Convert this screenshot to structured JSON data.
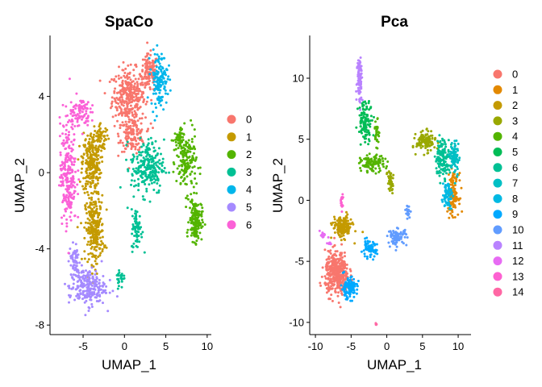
{
  "chart_data": [
    {
      "type": "scatter",
      "title": "SpaCo",
      "xlabel": "UMAP_1",
      "ylabel": "UMAP_2",
      "xlim": [
        -9,
        10.5
      ],
      "ylim": [
        -8.5,
        7.2
      ],
      "xticks": [
        -5,
        0,
        5,
        10
      ],
      "yticks": [
        -8,
        -4,
        0,
        4
      ],
      "grid": false,
      "legend_position": "right",
      "series": [
        {
          "name": "0",
          "color": "#F8766D",
          "blobs": [
            [
              0.5,
              4.0,
              1.8,
              1.3,
              320
            ],
            [
              3.0,
              5.2,
              1.0,
              0.9,
              120
            ],
            [
              1.0,
              2.0,
              1.4,
              0.8,
              140
            ]
          ]
        },
        {
          "name": "1",
          "color": "#C49A00",
          "blobs": [
            [
              -4.0,
              0.5,
              1.0,
              1.5,
              260
            ],
            [
              -3.6,
              -3.0,
              1.0,
              1.6,
              260
            ],
            [
              -2.8,
              1.8,
              0.8,
              0.6,
              60
            ]
          ]
        },
        {
          "name": "2",
          "color": "#53B400",
          "blobs": [
            [
              7.5,
              0.5,
              1.1,
              1.4,
              150
            ],
            [
              8.6,
              -2.5,
              0.7,
              1.0,
              170
            ],
            [
              6.5,
              1.7,
              0.6,
              0.5,
              50
            ]
          ]
        },
        {
          "name": "3",
          "color": "#00C094",
          "blobs": [
            [
              2.8,
              0.3,
              1.8,
              1.3,
              230
            ],
            [
              1.5,
              -3.0,
              0.6,
              1.0,
              70
            ],
            [
              -0.5,
              -5.5,
              0.5,
              0.5,
              25
            ]
          ]
        },
        {
          "name": "4",
          "color": "#00B6EB",
          "blobs": [
            [
              4.2,
              4.9,
              0.9,
              1.3,
              140
            ]
          ]
        },
        {
          "name": "5",
          "color": "#A58AFF",
          "blobs": [
            [
              -4.5,
              -6.0,
              2.0,
              0.9,
              230
            ],
            [
              -6.0,
              -4.6,
              0.6,
              0.8,
              50
            ]
          ]
        },
        {
          "name": "6",
          "color": "#FB61D7",
          "blobs": [
            [
              -6.8,
              0.0,
              0.9,
              2.5,
              240
            ],
            [
              -5.5,
              3.2,
              1.2,
              0.7,
              90
            ]
          ]
        }
      ]
    },
    {
      "type": "scatter",
      "title": "Pca",
      "xlabel": "UMAP_1",
      "ylabel": "UMAP_2",
      "xlim": [
        -10.8,
        11.8
      ],
      "ylim": [
        -11.0,
        13.5
      ],
      "xticks": [
        -10,
        -5,
        0,
        5,
        10
      ],
      "yticks": [
        -10,
        -5,
        0,
        5,
        10
      ],
      "grid": false,
      "legend_position": "right",
      "series": [
        {
          "name": "0",
          "color": "#F8766D",
          "blobs": [
            [
              -7.0,
              -6.0,
              1.5,
              1.6,
              400
            ]
          ]
        },
        {
          "name": "1",
          "color": "#E38900",
          "blobs": [
            [
              9.3,
              0.5,
              0.7,
              1.5,
              130
            ]
          ]
        },
        {
          "name": "2",
          "color": "#C49A00",
          "blobs": [
            [
              -6.2,
              -2.2,
              1.2,
              0.8,
              170
            ]
          ]
        },
        {
          "name": "3",
          "color": "#99A800",
          "blobs": [
            [
              5.5,
              4.8,
              1.2,
              0.7,
              130
            ],
            [
              0.5,
              1.5,
              0.4,
              1.0,
              40
            ]
          ]
        },
        {
          "name": "4",
          "color": "#53B400",
          "blobs": [
            [
              -2.0,
              3.0,
              1.5,
              0.6,
              110
            ],
            [
              -1.4,
              5.5,
              0.3,
              1.0,
              30
            ]
          ]
        },
        {
          "name": "5",
          "color": "#00BC56",
          "blobs": [
            [
              -3.0,
              6.5,
              0.9,
              1.5,
              110
            ]
          ]
        },
        {
          "name": "6",
          "color": "#00C094",
          "blobs": [
            [
              7.8,
              3.5,
              0.9,
              1.4,
              140
            ]
          ]
        },
        {
          "name": "7",
          "color": "#00BFC4",
          "blobs": [
            [
              9.5,
              3.5,
              0.6,
              1.3,
              80
            ]
          ]
        },
        {
          "name": "8",
          "color": "#00B9E3",
          "blobs": [
            [
              8.5,
              0.5,
              0.6,
              1.0,
              70
            ]
          ]
        },
        {
          "name": "9",
          "color": "#00A9FF",
          "blobs": [
            [
              -5.3,
              -7.2,
              1.0,
              0.8,
              120
            ],
            [
              -2.5,
              -4.0,
              1.0,
              0.6,
              60
            ]
          ]
        },
        {
          "name": "10",
          "color": "#619CFF",
          "blobs": [
            [
              1.5,
              -3.0,
              1.2,
              0.6,
              80
            ],
            [
              3.0,
              -1.0,
              0.3,
              0.5,
              20
            ]
          ]
        },
        {
          "name": "11",
          "color": "#B983FF",
          "blobs": [
            [
              -3.8,
              10.0,
              0.35,
              1.8,
              90
            ]
          ]
        },
        {
          "name": "12",
          "color": "#E76BF3",
          "blobs": [
            [
              -9.0,
              -2.8,
              0.35,
              0.25,
              15
            ],
            [
              -8.0,
              -3.5,
              0.3,
              0.3,
              8
            ]
          ]
        },
        {
          "name": "13",
          "color": "#FD61D1",
          "blobs": [
            [
              -6.3,
              0.0,
              0.15,
              0.5,
              18
            ]
          ]
        },
        {
          "name": "14",
          "color": "#FF67A4",
          "blobs": [
            [
              -1.5,
              -10.2,
              0.12,
              0.15,
              5
            ]
          ]
        }
      ]
    }
  ]
}
